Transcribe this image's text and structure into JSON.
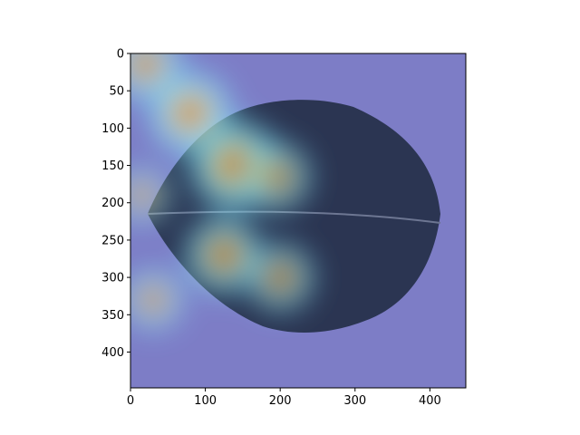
{
  "chart_data": {
    "type": "heatmap",
    "title": "",
    "xlabel": "",
    "ylabel": "",
    "xlim": [
      0,
      448
    ],
    "ylim": [
      448,
      0
    ],
    "x_ticks": [
      0,
      100,
      200,
      300,
      400
    ],
    "y_ticks": [
      0,
      50,
      100,
      150,
      200,
      250,
      300,
      350,
      400
    ],
    "y_axis_inverted": true,
    "grid": false,
    "legend": "none",
    "colormap": "jet",
    "overlay_colors": {
      "low": "#7c7cc4",
      "cyan": "#7fe6ff",
      "yellow": "#f2e36a",
      "red": "#cc2a10"
    },
    "leaf_color": "#2c3550",
    "hotspots": [
      {
        "x": 20,
        "y": 15,
        "intensity": 0.72
      },
      {
        "x": 80,
        "y": 80,
        "intensity": 0.88
      },
      {
        "x": 140,
        "y": 150,
        "intensity": 1.0
      },
      {
        "x": 125,
        "y": 270,
        "intensity": 0.78
      },
      {
        "x": 195,
        "y": 165,
        "intensity": 0.62
      },
      {
        "x": 200,
        "y": 300,
        "intensity": 0.6
      },
      {
        "x": 30,
        "y": 330,
        "intensity": 0.5
      },
      {
        "x": 15,
        "y": 190,
        "intensity": 0.42
      }
    ]
  }
}
